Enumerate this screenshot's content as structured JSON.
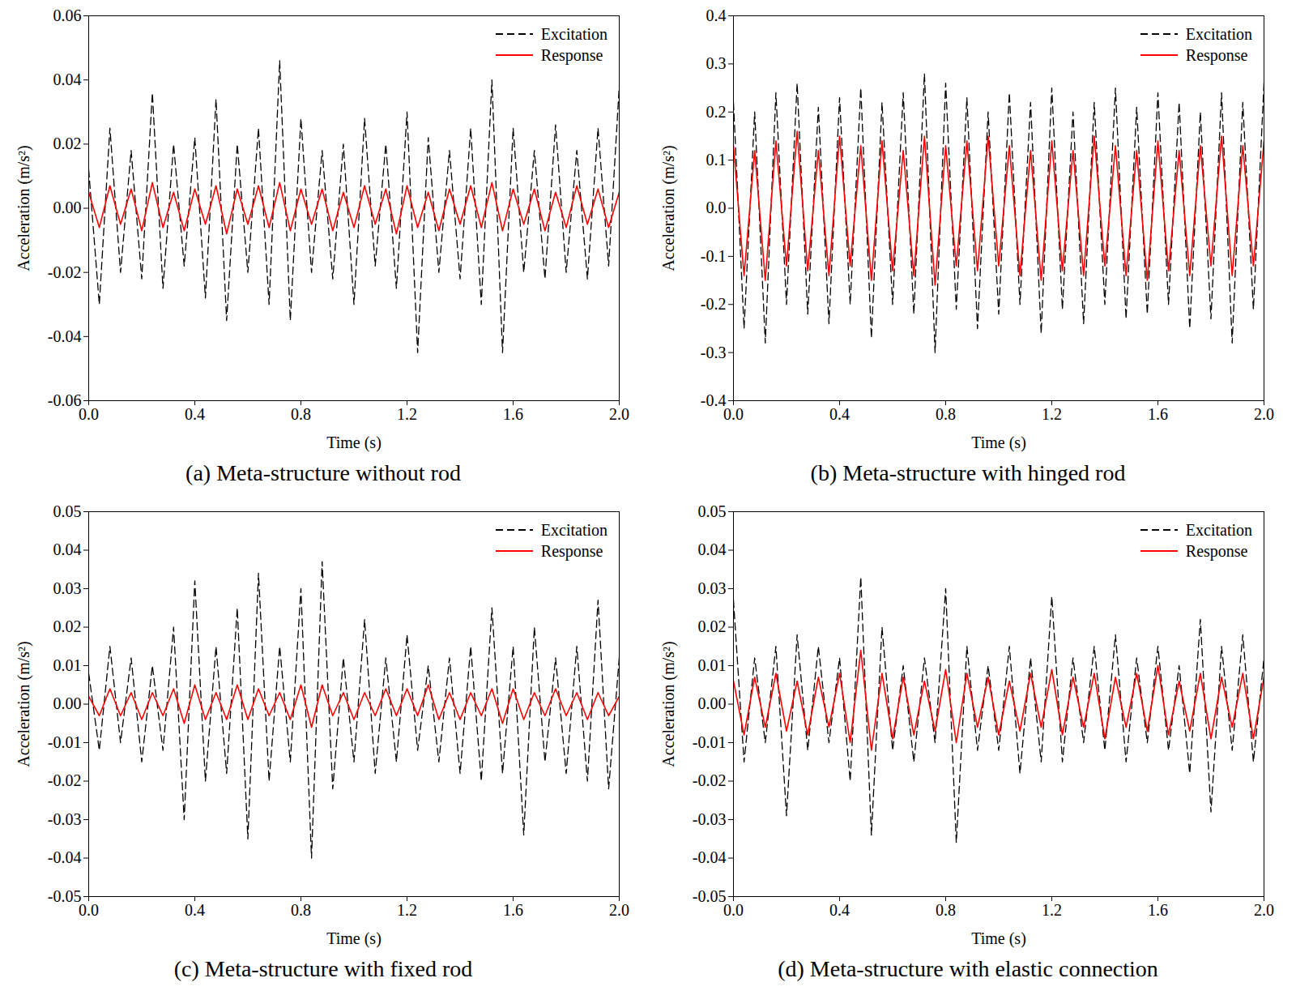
{
  "chart_data": [
    {
      "type": "line",
      "title": "(a) Meta-structure without rod",
      "x_label": "Time (s)",
      "y_label": "Acceleration (m/s²)",
      "xlim": [
        0,
        2
      ],
      "xticks": [
        {
          "value": 0,
          "label": "0.0"
        },
        0.4,
        0.8,
        1.2,
        1.6,
        {
          "value": 2,
          "label": "2.0"
        }
      ],
      "ylim": [
        -0.06,
        0.06
      ],
      "yticks": [
        -0.06,
        -0.04,
        -0.02,
        {
          "value": 0,
          "label": "0.00"
        },
        0.02,
        0.04,
        0.06
      ],
      "legend": "upper right",
      "x": [
        0,
        0.04,
        0.08,
        0.12,
        0.16,
        0.2,
        0.24,
        0.28,
        0.32,
        0.36,
        0.4,
        0.44,
        0.48,
        0.52,
        0.56,
        0.6,
        0.64,
        0.68,
        0.72,
        0.76,
        0.8,
        0.84,
        0.88,
        0.92,
        0.96,
        1,
        1.04,
        1.08,
        1.12,
        1.16,
        1.2,
        1.24,
        1.28,
        1.32,
        1.36,
        1.4,
        1.44,
        1.48,
        1.52,
        1.56,
        1.6,
        1.64,
        1.68,
        1.72,
        1.76,
        1.8,
        1.84,
        1.88,
        1.92,
        1.96,
        2
      ],
      "series": [
        {
          "name": "Excitation",
          "color": "#000000",
          "line_style": "dashed",
          "values": [
            0.012,
            -0.03,
            0.025,
            -0.02,
            0.018,
            -0.022,
            0.036,
            -0.025,
            0.02,
            -0.018,
            0.022,
            -0.028,
            0.034,
            -0.035,
            0.02,
            -0.02,
            0.025,
            -0.03,
            0.046,
            -0.035,
            0.028,
            -0.02,
            0.018,
            -0.022,
            0.02,
            -0.03,
            0.028,
            -0.018,
            0.02,
            -0.025,
            0.03,
            -0.045,
            0.022,
            -0.02,
            0.018,
            -0.022,
            0.025,
            -0.03,
            0.04,
            -0.045,
            0.025,
            -0.02,
            0.018,
            -0.022,
            0.026,
            -0.02,
            0.018,
            -0.022,
            0.025,
            -0.018,
            0.038
          ]
        },
        {
          "name": "Response",
          "color": "#ff0000",
          "line_style": "solid",
          "values": [
            0.005,
            -0.006,
            0.007,
            -0.005,
            0.006,
            -0.007,
            0.008,
            -0.006,
            0.005,
            -0.007,
            0.006,
            -0.005,
            0.007,
            -0.008,
            0.006,
            -0.005,
            0.007,
            -0.006,
            0.008,
            -0.007,
            0.006,
            -0.005,
            0.006,
            -0.007,
            0.005,
            -0.006,
            0.007,
            -0.005,
            0.006,
            -0.008,
            0.007,
            -0.006,
            0.005,
            -0.007,
            0.006,
            -0.005,
            0.007,
            -0.006,
            0.008,
            -0.007,
            0.006,
            -0.005,
            0.006,
            -0.007,
            0.005,
            -0.006,
            0.007,
            -0.005,
            0.006,
            -0.006,
            0.005
          ]
        }
      ]
    },
    {
      "type": "line",
      "title": "(b) Meta-structure with hinged rod",
      "x_label": "Time (s)",
      "y_label": "Acceleration (m/s²)",
      "xlim": [
        0,
        2
      ],
      "xticks": [
        {
          "value": 0,
          "label": "0.0"
        },
        0.4,
        0.8,
        1.2,
        1.6,
        {
          "value": 2,
          "label": "2.0"
        }
      ],
      "ylim": [
        -0.4,
        0.4
      ],
      "yticks": [
        -0.4,
        -0.3,
        -0.2,
        -0.1,
        {
          "value": 0,
          "label": "0.0"
        },
        0.1,
        0.2,
        0.3,
        0.4
      ],
      "legend": "upper right",
      "x": [
        0,
        0.04,
        0.08,
        0.12,
        0.16,
        0.2,
        0.24,
        0.28,
        0.32,
        0.36,
        0.4,
        0.44,
        0.48,
        0.52,
        0.56,
        0.6,
        0.64,
        0.68,
        0.72,
        0.76,
        0.8,
        0.84,
        0.88,
        0.92,
        0.96,
        1,
        1.04,
        1.08,
        1.12,
        1.16,
        1.2,
        1.24,
        1.28,
        1.32,
        1.36,
        1.4,
        1.44,
        1.48,
        1.52,
        1.56,
        1.6,
        1.64,
        1.68,
        1.72,
        1.76,
        1.8,
        1.84,
        1.88,
        1.92,
        1.96,
        2
      ],
      "series": [
        {
          "name": "Excitation",
          "color": "#000000",
          "line_style": "dashed",
          "values": [
            0.22,
            -0.25,
            0.2,
            -0.28,
            0.24,
            -0.2,
            0.26,
            -0.22,
            0.21,
            -0.24,
            0.23,
            -0.2,
            0.25,
            -0.27,
            0.22,
            -0.2,
            0.24,
            -0.22,
            0.28,
            -0.3,
            0.26,
            -0.21,
            0.23,
            -0.25,
            0.2,
            -0.22,
            0.24,
            -0.2,
            0.22,
            -0.26,
            0.25,
            -0.21,
            0.2,
            -0.24,
            0.22,
            -0.2,
            0.25,
            -0.23,
            0.21,
            -0.22,
            0.24,
            -0.2,
            0.22,
            -0.25,
            0.2,
            -0.23,
            0.24,
            -0.28,
            0.22,
            -0.21,
            0.26
          ]
        },
        {
          "name": "Response",
          "color": "#ff0000",
          "line_style": "solid",
          "values": [
            0.13,
            -0.14,
            0.12,
            -0.15,
            0.14,
            -0.12,
            0.16,
            -0.13,
            0.12,
            -0.14,
            0.15,
            -0.12,
            0.13,
            -0.15,
            0.14,
            -0.13,
            0.12,
            -0.14,
            0.15,
            -0.16,
            0.13,
            -0.12,
            0.14,
            -0.13,
            0.15,
            -0.12,
            0.13,
            -0.14,
            0.12,
            -0.15,
            0.14,
            -0.13,
            0.12,
            -0.14,
            0.15,
            -0.12,
            0.13,
            -0.14,
            0.12,
            -0.15,
            0.14,
            -0.13,
            0.12,
            -0.14,
            0.13,
            -0.12,
            0.15,
            -0.14,
            0.13,
            -0.12,
            0.14
          ]
        }
      ]
    },
    {
      "type": "line",
      "title": "(c) Meta-structure with fixed rod",
      "x_label": "Time (s)",
      "y_label": "Acceleration (m/s²)",
      "xlim": [
        0,
        2
      ],
      "xticks": [
        {
          "value": 0,
          "label": "0.0"
        },
        0.4,
        0.8,
        1.2,
        1.6,
        {
          "value": 2,
          "label": "2.0"
        }
      ],
      "ylim": [
        -0.05,
        0.05
      ],
      "yticks": [
        -0.05,
        -0.04,
        -0.03,
        -0.02,
        -0.01,
        {
          "value": 0,
          "label": "0.00"
        },
        0.01,
        0.02,
        0.03,
        0.04,
        0.05
      ],
      "legend": "upper right",
      "x": [
        0,
        0.04,
        0.08,
        0.12,
        0.16,
        0.2,
        0.24,
        0.28,
        0.32,
        0.36,
        0.4,
        0.44,
        0.48,
        0.52,
        0.56,
        0.6,
        0.64,
        0.68,
        0.72,
        0.76,
        0.8,
        0.84,
        0.88,
        0.92,
        0.96,
        1,
        1.04,
        1.08,
        1.12,
        1.16,
        1.2,
        1.24,
        1.28,
        1.32,
        1.36,
        1.4,
        1.44,
        1.48,
        1.52,
        1.56,
        1.6,
        1.64,
        1.68,
        1.72,
        1.76,
        1.8,
        1.84,
        1.88,
        1.92,
        1.96,
        2
      ],
      "series": [
        {
          "name": "Excitation",
          "color": "#000000",
          "line_style": "dashed",
          "values": [
            0.008,
            -0.012,
            0.015,
            -0.01,
            0.012,
            -0.015,
            0.01,
            -0.012,
            0.02,
            -0.03,
            0.032,
            -0.02,
            0.015,
            -0.018,
            0.025,
            -0.035,
            0.034,
            -0.02,
            0.015,
            -0.015,
            0.03,
            -0.04,
            0.037,
            -0.022,
            0.012,
            -0.015,
            0.022,
            -0.018,
            0.012,
            -0.015,
            0.018,
            -0.012,
            0.01,
            -0.015,
            0.012,
            -0.018,
            0.015,
            -0.02,
            0.025,
            -0.018,
            0.015,
            -0.034,
            0.02,
            -0.015,
            0.012,
            -0.018,
            0.015,
            -0.02,
            0.027,
            -0.022,
            0.012
          ]
        },
        {
          "name": "Response",
          "color": "#ff0000",
          "line_style": "solid",
          "values": [
            0.002,
            -0.003,
            0.004,
            -0.003,
            0.003,
            -0.004,
            0.003,
            -0.003,
            0.004,
            -0.005,
            0.005,
            -0.004,
            0.003,
            -0.004,
            0.005,
            -0.004,
            0.004,
            -0.003,
            0.003,
            -0.004,
            0.005,
            -0.006,
            0.005,
            -0.003,
            0.003,
            -0.004,
            0.003,
            -0.003,
            0.004,
            -0.003,
            0.004,
            -0.003,
            0.005,
            -0.004,
            0.003,
            -0.004,
            0.003,
            -0.003,
            0.004,
            -0.005,
            0.004,
            -0.004,
            0.003,
            -0.003,
            0.004,
            -0.003,
            0.003,
            -0.004,
            0.003,
            -0.003,
            0.002
          ]
        }
      ]
    },
    {
      "type": "line",
      "title": "(d) Meta-structure with elastic connection",
      "x_label": "Time (s)",
      "y_label": "Acceleration (m/s²)",
      "xlim": [
        0,
        2
      ],
      "xticks": [
        {
          "value": 0,
          "label": "0.0"
        },
        0.4,
        0.8,
        1.2,
        1.6,
        {
          "value": 2,
          "label": "2.0"
        }
      ],
      "ylim": [
        -0.05,
        0.05
      ],
      "yticks": [
        -0.05,
        -0.04,
        -0.03,
        -0.02,
        -0.01,
        {
          "value": 0,
          "label": "0.00"
        },
        0.01,
        0.02,
        0.03,
        0.04,
        0.05
      ],
      "legend": "upper right",
      "x": [
        0,
        0.04,
        0.08,
        0.12,
        0.16,
        0.2,
        0.24,
        0.28,
        0.32,
        0.36,
        0.4,
        0.44,
        0.48,
        0.52,
        0.56,
        0.6,
        0.64,
        0.68,
        0.72,
        0.76,
        0.8,
        0.84,
        0.88,
        0.92,
        0.96,
        1,
        1.04,
        1.08,
        1.12,
        1.16,
        1.2,
        1.24,
        1.28,
        1.32,
        1.36,
        1.4,
        1.44,
        1.48,
        1.52,
        1.56,
        1.6,
        1.64,
        1.68,
        1.72,
        1.76,
        1.8,
        1.84,
        1.88,
        1.92,
        1.96,
        2
      ],
      "series": [
        {
          "name": "Excitation",
          "color": "#000000",
          "line_style": "dashed",
          "values": [
            0.027,
            -0.015,
            0.012,
            -0.01,
            0.015,
            -0.029,
            0.018,
            -0.012,
            0.015,
            -0.01,
            0.012,
            -0.02,
            0.033,
            -0.034,
            0.02,
            -0.012,
            0.01,
            -0.015,
            0.012,
            -0.01,
            0.03,
            -0.036,
            0.015,
            -0.012,
            0.01,
            -0.012,
            0.015,
            -0.018,
            0.012,
            -0.015,
            0.028,
            -0.015,
            0.012,
            -0.01,
            0.015,
            -0.012,
            0.018,
            -0.015,
            0.012,
            -0.01,
            0.015,
            -0.012,
            0.01,
            -0.018,
            0.022,
            -0.028,
            0.015,
            -0.012,
            0.018,
            -0.015,
            0.012
          ]
        },
        {
          "name": "Response",
          "color": "#ff0000",
          "line_style": "solid",
          "values": [
            0.006,
            -0.008,
            0.007,
            -0.006,
            0.008,
            -0.007,
            0.006,
            -0.008,
            0.007,
            -0.006,
            0.008,
            -0.01,
            0.014,
            -0.012,
            0.008,
            -0.009,
            0.007,
            -0.008,
            0.006,
            -0.007,
            0.009,
            -0.01,
            0.008,
            -0.006,
            0.007,
            -0.008,
            0.006,
            -0.007,
            0.008,
            -0.006,
            0.009,
            -0.008,
            0.007,
            -0.006,
            0.008,
            -0.009,
            0.007,
            -0.006,
            0.008,
            -0.007,
            0.01,
            -0.008,
            0.006,
            -0.007,
            0.008,
            -0.009,
            0.007,
            -0.006,
            0.008,
            -0.009,
            0.007
          ]
        }
      ]
    }
  ]
}
